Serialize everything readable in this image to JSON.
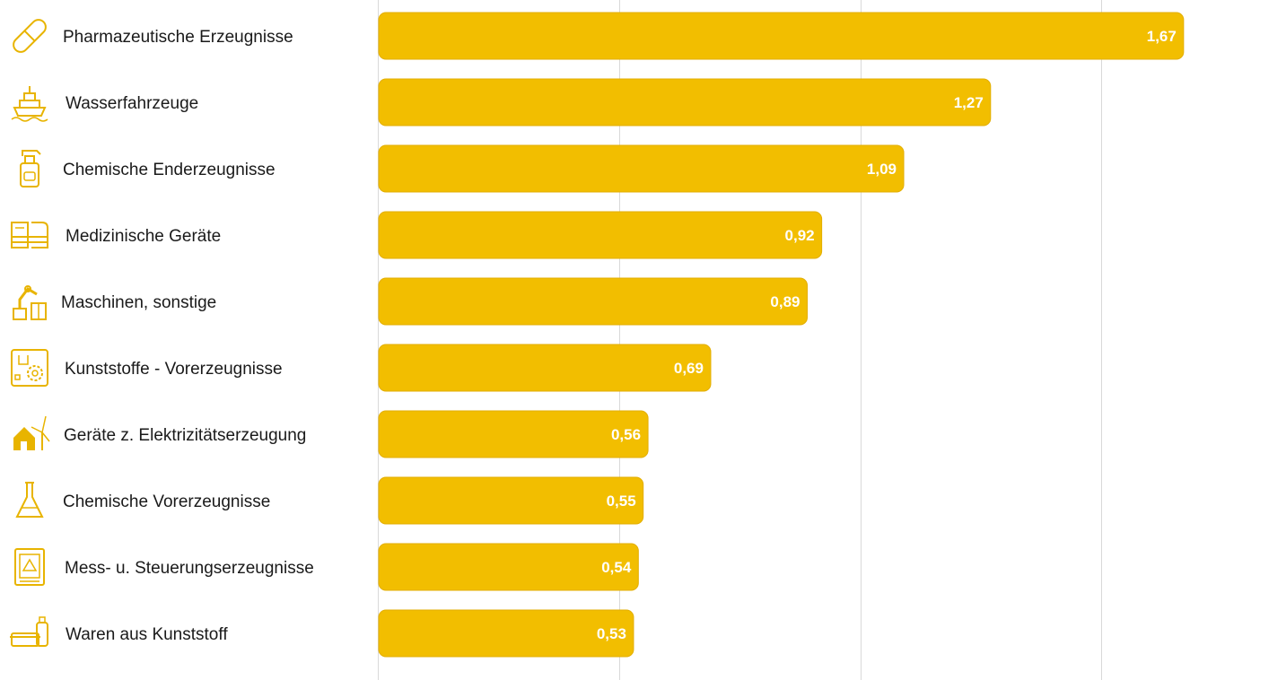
{
  "colors": {
    "bar": "#F2BE00",
    "bar_border": "#E3AE00",
    "icon": "#E8B400",
    "grid": "#D9D9D9",
    "value_text": "#FFFFFF",
    "label_text": "#1A1A1A"
  },
  "chart_data": {
    "type": "bar",
    "orientation": "horizontal",
    "title": "",
    "xlabel": "",
    "ylabel": "",
    "xlim": [
      0,
      1.86
    ],
    "grid": "vertical",
    "legend": "none",
    "categories": [
      "Pharmazeutische Erzeugnisse",
      "Wasserfahrzeuge",
      "Chemische Enderzeugnisse",
      "Medizinische Geräte",
      "Maschinen, sonstige",
      "Kunststoffe - Vorerzeugnisse",
      "Geräte z. Elektrizitätserzeugung",
      "Chemische Vorerzeugnisse",
      "Mess- u. Steuerungserzeugnisse",
      "Waren aus Kunststoff"
    ],
    "values": [
      1.67,
      1.27,
      1.09,
      0.92,
      0.89,
      0.69,
      0.56,
      0.55,
      0.54,
      0.53
    ],
    "value_labels": [
      "1,67",
      "1,27",
      "1,09",
      "0,92",
      "0,89",
      "0,69",
      "0,56",
      "0,55",
      "0,54",
      "0,53"
    ],
    "icons": [
      "pill-icon",
      "ship-icon",
      "spray-bottle-icon",
      "medical-scanner-icon",
      "robot-arm-icon",
      "plastic-gear-icon",
      "wind-house-icon",
      "flask-icon",
      "control-panel-icon",
      "plastic-container-icon"
    ]
  }
}
